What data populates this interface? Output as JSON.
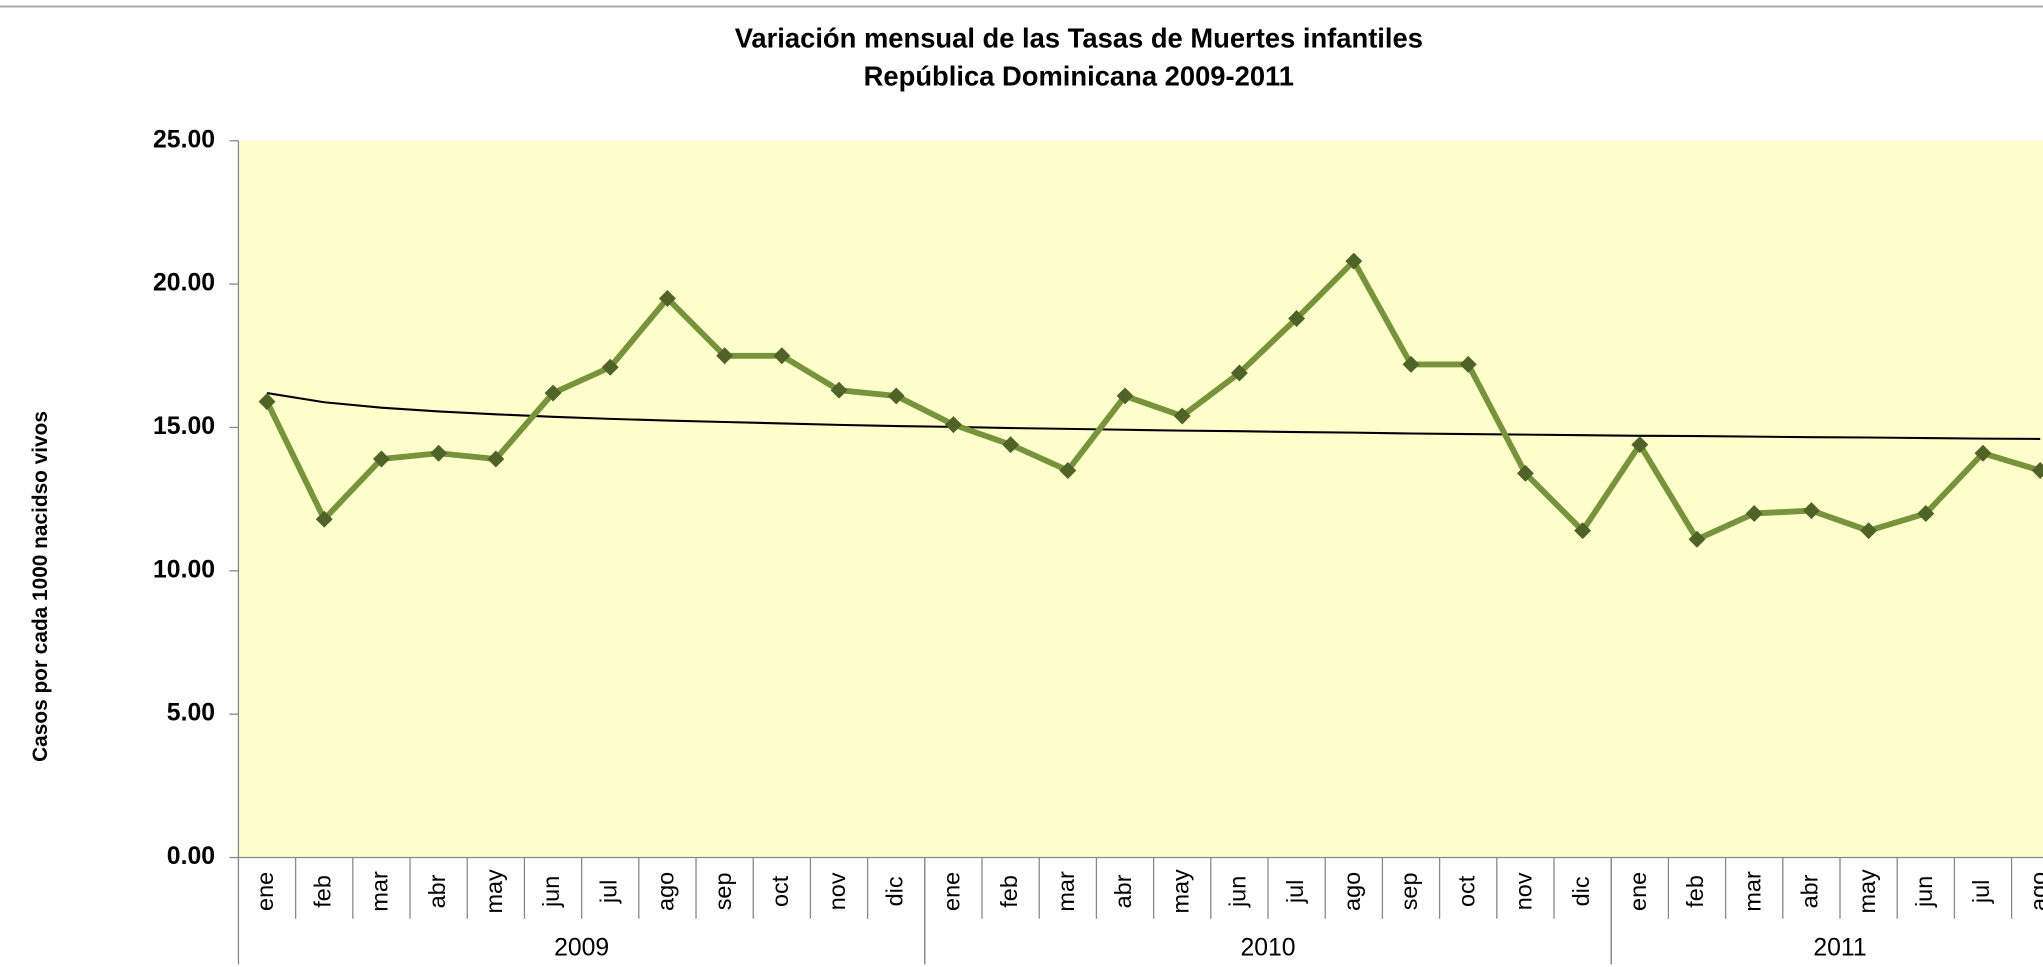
{
  "chart_data": {
    "type": "line",
    "title": [
      "Variación mensual de las Tasas de Muertes infantiles",
      "República Dominicana   2009-2011"
    ],
    "y_label": "Casos por cada 1000 nacidso vivos",
    "categories": [
      "ene",
      "feb",
      "mar",
      "abr",
      "may",
      "jun",
      "jul",
      "ago",
      "sep",
      "oct",
      "nov",
      "dic",
      "ene",
      "feb",
      "mar",
      "abr",
      "may",
      "jun",
      "jul",
      "ago",
      "sep",
      "oct",
      "nov",
      "dic",
      "ene",
      "feb",
      "mar",
      "abr",
      "may",
      "jun",
      "jul",
      "ago"
    ],
    "category_groups": [
      {
        "label": "2009",
        "count": 12
      },
      {
        "label": "2010",
        "count": 12
      },
      {
        "label": "2011",
        "count": 8
      }
    ],
    "values": [
      15.9,
      11.8,
      13.9,
      14.1,
      13.9,
      16.2,
      17.1,
      19.5,
      17.5,
      17.5,
      16.3,
      16.1,
      15.1,
      14.4,
      13.5,
      16.1,
      15.4,
      16.9,
      18.8,
      20.8,
      17.2,
      17.2,
      13.4,
      11.4,
      14.4,
      11.1,
      12.0,
      12.1,
      11.4,
      12.0,
      14.1,
      13.5
    ],
    "color": "#77933c",
    "marker_color": "#4f6228",
    "trendline": {
      "type": "logarithmic",
      "color": "#000000",
      "values": [
        16.2,
        15.88,
        15.69,
        15.56,
        15.46,
        15.37,
        15.3,
        15.24,
        15.19,
        15.14,
        15.09,
        15.05,
        15.02,
        14.98,
        14.95,
        14.92,
        14.89,
        14.87,
        14.84,
        14.82,
        14.79,
        14.77,
        14.75,
        14.73,
        14.71,
        14.7,
        14.68,
        14.66,
        14.65,
        14.63,
        14.61,
        14.6
      ]
    },
    "ylim": [
      0,
      25
    ],
    "yticks": [
      {
        "value": 0,
        "label": "0.00"
      },
      {
        "value": 5,
        "label": "5.00"
      },
      {
        "value": 10,
        "label": "10.00"
      },
      {
        "value": 15,
        "label": "15.00"
      },
      {
        "value": 20,
        "label": "20.00"
      },
      {
        "value": 25,
        "label": "25.00"
      }
    ],
    "plot_background": "#ffffcc",
    "grid": false
  }
}
